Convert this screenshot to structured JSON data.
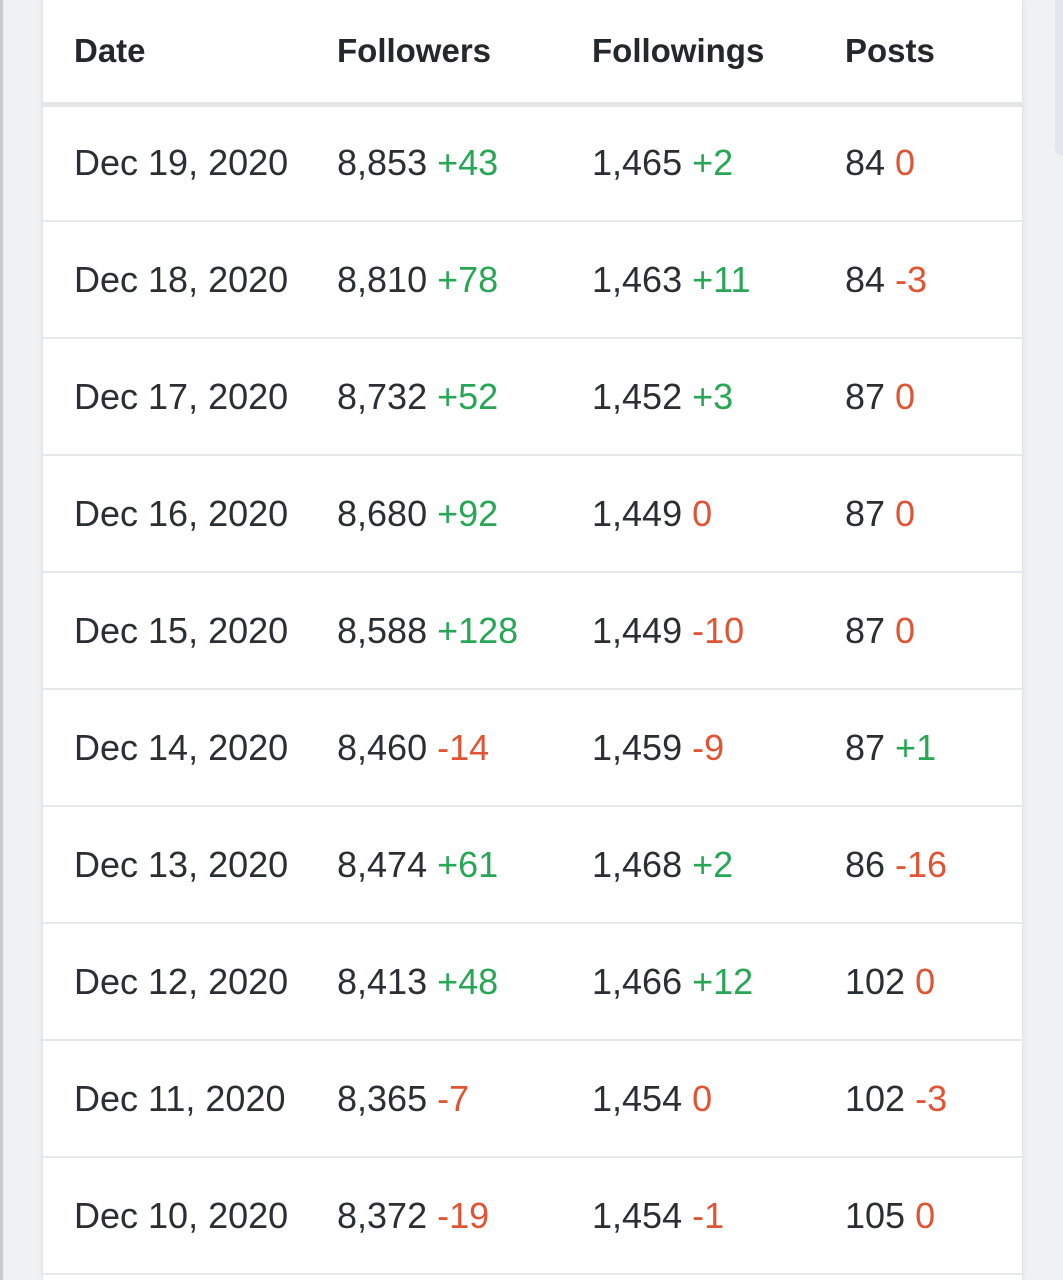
{
  "headers": {
    "date": "Date",
    "followers": "Followers",
    "followings": "Followings",
    "posts": "Posts"
  },
  "colors": {
    "positive": "#27a655",
    "negative": "#e05434"
  },
  "rows": [
    {
      "date": "Dec 19, 2020",
      "followers": "8,853",
      "followers_delta": "+43",
      "followings": "1,465",
      "followings_delta": "+2",
      "posts": "84",
      "posts_delta": "0"
    },
    {
      "date": "Dec 18, 2020",
      "followers": "8,810",
      "followers_delta": "+78",
      "followings": "1,463",
      "followings_delta": "+11",
      "posts": "84",
      "posts_delta": "-3"
    },
    {
      "date": "Dec 17, 2020",
      "followers": "8,732",
      "followers_delta": "+52",
      "followings": "1,452",
      "followings_delta": "+3",
      "posts": "87",
      "posts_delta": "0"
    },
    {
      "date": "Dec 16, 2020",
      "followers": "8,680",
      "followers_delta": "+92",
      "followings": "1,449",
      "followings_delta": "0",
      "posts": "87",
      "posts_delta": "0"
    },
    {
      "date": "Dec 15, 2020",
      "followers": "8,588",
      "followers_delta": "+128",
      "followings": "1,449",
      "followings_delta": "-10",
      "posts": "87",
      "posts_delta": "0"
    },
    {
      "date": "Dec 14, 2020",
      "followers": "8,460",
      "followers_delta": "-14",
      "followings": "1,459",
      "followings_delta": "-9",
      "posts": "87",
      "posts_delta": "+1"
    },
    {
      "date": "Dec 13, 2020",
      "followers": "8,474",
      "followers_delta": "+61",
      "followings": "1,468",
      "followings_delta": "+2",
      "posts": "86",
      "posts_delta": "-16"
    },
    {
      "date": "Dec 12, 2020",
      "followers": "8,413",
      "followers_delta": "+48",
      "followings": "1,466",
      "followings_delta": "+12",
      "posts": "102",
      "posts_delta": "0"
    },
    {
      "date": "Dec 11, 2020",
      "followers": "8,365",
      "followers_delta": "-7",
      "followings": "1,454",
      "followings_delta": "0",
      "posts": "102",
      "posts_delta": "-3"
    },
    {
      "date": "Dec 10, 2020",
      "followers": "8,372",
      "followers_delta": "-19",
      "followings": "1,454",
      "followings_delta": "-1",
      "posts": "105",
      "posts_delta": "0"
    }
  ]
}
